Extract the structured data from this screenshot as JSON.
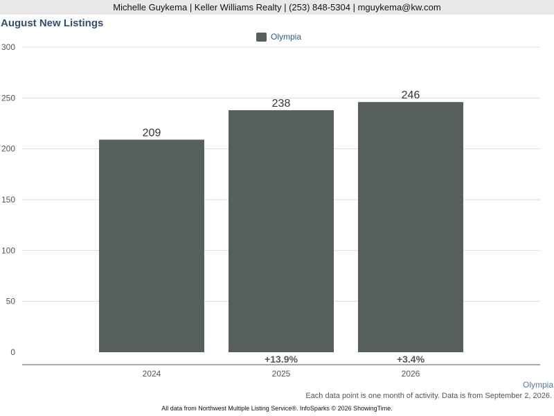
{
  "header": {
    "contact": "Michelle Guykema | Keller Williams Realty | (253) 848-5304 | mguykema@kw.com"
  },
  "chart_data": {
    "type": "bar",
    "title": "August New Listings",
    "categories": [
      "2024",
      "2025",
      "2026"
    ],
    "series": [
      {
        "name": "Olympia",
        "values": [
          209,
          238,
          246
        ],
        "color": "#565f5b"
      }
    ],
    "change_labels": [
      "",
      "+13.9%",
      "+3.4%"
    ],
    "ylim": [
      0,
      300
    ],
    "yticks": [
      0,
      50,
      100,
      150,
      200,
      250,
      300
    ],
    "grid": true,
    "legend_position": "top-center"
  },
  "footer": {
    "region": "Olympia",
    "note": "Each data point is one month of activity. Data is from September 2, 2026.",
    "source": "All data from Northwest Multiple Listing Service®. InfoSparks © 2026 ShowingTime."
  }
}
